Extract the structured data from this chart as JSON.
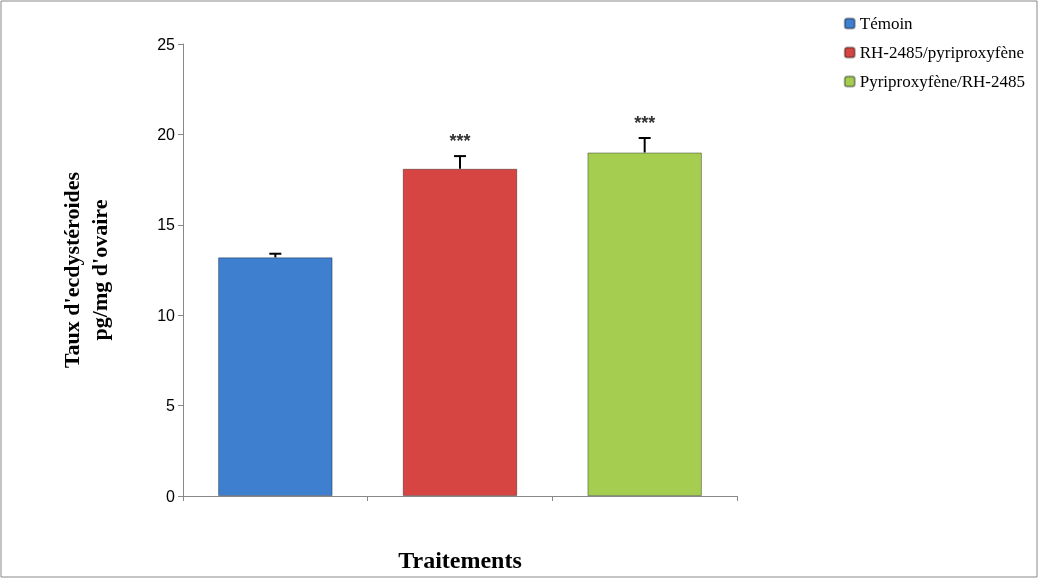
{
  "chart_data": {
    "type": "bar",
    "xlabel": "Traitements",
    "ylabel": "Taux d'ecdystéroides\npg/mg d'ovaire",
    "categories": [
      null,
      null,
      null
    ],
    "stacked": true,
    "series": [
      {
        "name": "Témoin",
        "color": "#3f7fd0",
        "values": [
          13.2,
          null,
          null
        ],
        "errors": [
          [
            13.2,
            13.4
          ],
          null,
          null
        ]
      },
      {
        "name": "RH-2485/pyriproxyfène",
        "color": "#d64541",
        "values": [
          null,
          18.1,
          null
        ],
        "errors": [
          null,
          [
            18.1,
            18.8
          ],
          null
        ]
      },
      {
        "name": "Pyriproxyfène/RH-2485",
        "color": "#a5cd50",
        "values": [
          null,
          null,
          19.0
        ],
        "errors": [
          null,
          null,
          [
            19.0,
            19.8
          ]
        ]
      }
    ],
    "annotations": [
      {
        "text": "***",
        "y": 18.8
      },
      {
        "text": "***",
        "y": 19.8
      }
    ],
    "ylim": [
      0,
      25
    ],
    "yticks": [
      0,
      5,
      10,
      15,
      20,
      25
    ],
    "grid": false,
    "legend": "top right"
  }
}
